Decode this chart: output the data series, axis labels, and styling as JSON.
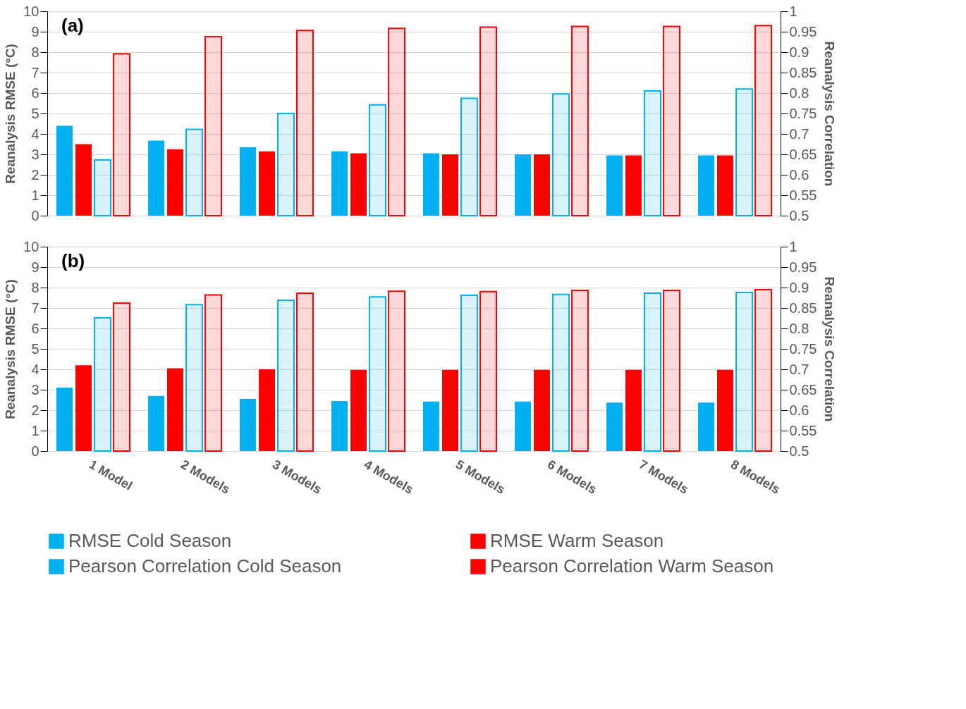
{
  "chart_data": [
    {
      "type": "bar",
      "annotations": [
        "(a)"
      ],
      "ylabel": "Reanalysis RMSE (°C)",
      "y2label": "Reanalysis Correlation",
      "categories": [
        null,
        null,
        null,
        null,
        null,
        null,
        null,
        null
      ],
      "ylim": [
        0,
        10
      ],
      "yticks": [
        0,
        1,
        2,
        3,
        4,
        5,
        6,
        7,
        8,
        9,
        10
      ],
      "y2lim": [
        0.5,
        1
      ],
      "y2ticks": [
        0.5,
        0.55,
        0.6,
        0.65,
        0.7,
        0.75,
        0.8,
        0.85,
        0.9,
        0.95,
        1
      ],
      "grid": "y",
      "tick_labels": "y",
      "series": [
        {
          "color": "#00b0f0",
          "values": [
            4.4,
            3.67,
            3.35,
            3.15,
            3.05,
            3.0,
            2.95,
            2.95
          ]
        },
        {
          "color": "#ff0000",
          "values": [
            3.5,
            3.25,
            3.15,
            3.05,
            3.0,
            3.0,
            2.95,
            2.95
          ]
        },
        {
          "color": "#00b0f0",
          "axis": "y2",
          "values": [
            0.636,
            0.711,
            0.75,
            0.771,
            0.787,
            0.798,
            0.805,
            0.81
          ]
        },
        {
          "color": "#ff0000",
          "axis": "y2",
          "values": [
            0.896,
            0.938,
            0.953,
            0.958,
            0.961,
            0.963,
            0.963,
            0.965
          ]
        }
      ]
    },
    {
      "type": "bar",
      "annotations": [
        "(b)"
      ],
      "ylabel": "Reanalysis RMSE (°C)",
      "y2label": "Reanalysis Correlation",
      "categories": [
        "1 Model",
        "2 Models",
        "3 Models",
        "4 Models",
        "5 Models",
        "6 Models",
        "7 Models",
        "8 Models"
      ],
      "ylim": [
        0,
        10
      ],
      "yticks": [
        0,
        1,
        2,
        3,
        4,
        5,
        6,
        7,
        8,
        9,
        10
      ],
      "y2lim": [
        0.5,
        1
      ],
      "y2ticks": [
        0.5,
        0.55,
        0.6,
        0.65,
        0.7,
        0.75,
        0.8,
        0.85,
        0.9,
        0.95,
        1
      ],
      "grid": "y",
      "legend": "bottom",
      "series": [
        {
          "name": "RMSE Cold Season",
          "color": "#00b0f0",
          "values": [
            3.1,
            2.7,
            2.55,
            2.45,
            2.42,
            2.42,
            2.37,
            2.37
          ]
        },
        {
          "name": "RMSE Warm Season",
          "color": "#ff0000",
          "values": [
            4.2,
            4.05,
            4.0,
            3.97,
            3.97,
            3.97,
            3.97,
            3.97
          ]
        },
        {
          "name": "Pearson Correlation Cold Season",
          "color": "#00b0f0",
          "axis": "y2",
          "values": [
            0.826,
            0.858,
            0.869,
            0.877,
            0.881,
            0.883,
            0.886,
            0.888
          ]
        },
        {
          "name": "Pearson Correlation Warm Season",
          "color": "#ff0000",
          "axis": "y2",
          "values": [
            0.862,
            0.882,
            0.886,
            0.891,
            0.89,
            0.893,
            0.893,
            0.895
          ]
        }
      ]
    }
  ]
}
